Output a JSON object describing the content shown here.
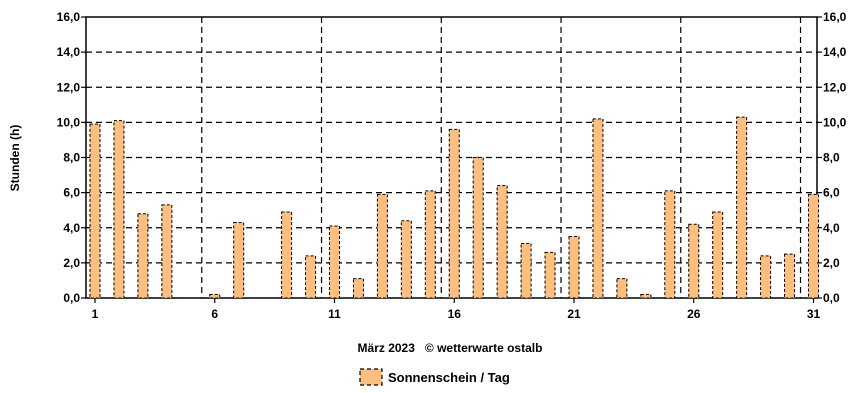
{
  "chart_data": {
    "type": "bar",
    "ylabel": "Stunden   (h)",
    "xlabel": "März 2023   © wetterwarte ostalb",
    "ylim": [
      0,
      16
    ],
    "yticks": [
      "0,0",
      "2,0",
      "4,0",
      "6,0",
      "8,0",
      "10,0",
      "12,0",
      "14,0",
      "16,0"
    ],
    "ytick_values": [
      0,
      2,
      4,
      6,
      8,
      10,
      12,
      14,
      16
    ],
    "xtick_labels": [
      "1",
      "6",
      "11",
      "16",
      "21",
      "26",
      "31"
    ],
    "xtick_days": [
      1,
      6,
      11,
      16,
      21,
      26,
      31
    ],
    "categories": [
      1,
      2,
      3,
      4,
      5,
      6,
      7,
      8,
      9,
      10,
      11,
      12,
      13,
      14,
      15,
      16,
      17,
      18,
      19,
      20,
      21,
      22,
      23,
      24,
      25,
      26,
      27,
      28,
      29,
      30,
      31
    ],
    "series": [
      {
        "name": "Sonnenschein / Tag",
        "values": [
          9.9,
          10.1,
          4.8,
          5.3,
          0.0,
          0.2,
          4.3,
          0.0,
          4.9,
          2.4,
          4.1,
          1.1,
          5.9,
          4.4,
          6.1,
          9.6,
          8.0,
          6.4,
          3.1,
          2.6,
          3.5,
          10.2,
          1.1,
          0.2,
          6.1,
          4.2,
          4.9,
          10.3,
          2.4,
          2.5,
          5.9
        ]
      }
    ],
    "grid": true,
    "legend_position": "bottom-center",
    "bar_color": "#fdbf80",
    "bar_stroke": "#000000"
  }
}
